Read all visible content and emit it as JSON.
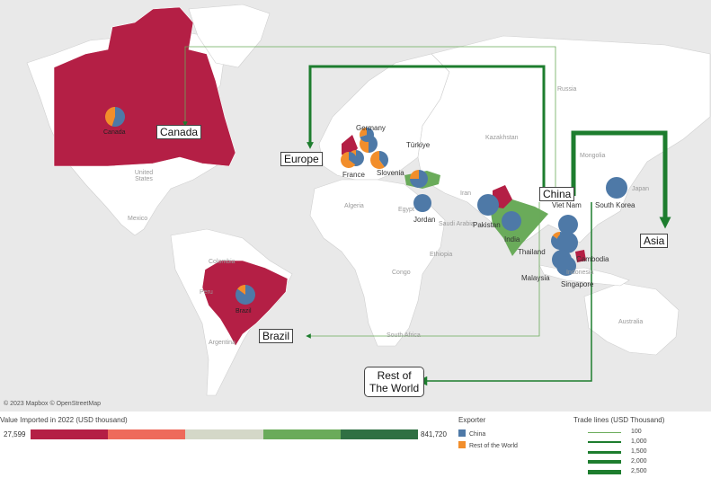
{
  "map": {
    "attribution": "© 2023 Mapbox © OpenStreetMap",
    "geo_labels": [
      "Russia",
      "United States",
      "Mexico",
      "Colombia",
      "Peru",
      "Argentina",
      "Algeria",
      "Egypt",
      "Saudi Arabia",
      "Ethiopia",
      "Congo",
      "South Africa",
      "Iran",
      "Japan",
      "Indonesia",
      "Australia",
      "Kazakhstan",
      "Mongolia",
      "Türkiye"
    ],
    "country_labels": {
      "canada": "Canada",
      "brazil": "Brazil",
      "germany": "Germany",
      "france": "France",
      "slovenia": "Slovenia",
      "jordan": "Jordan",
      "pakistan": "Pakistan",
      "india": "India",
      "thailand": "Thailand",
      "vietnam": "Viet Nam",
      "cambodia": "Cambodia",
      "malaysia": "Malaysia",
      "singapore": "Singapore",
      "south_korea": "South Korea"
    },
    "regions": {
      "canada": "Canada",
      "europe": "Europe",
      "china": "China",
      "asia": "Asia",
      "brazil": "Brazil",
      "rest_of_world": "Rest of\nThe World"
    },
    "pies": [
      {
        "country": "Canada",
        "china_share": 0.55
      },
      {
        "country": "Brazil",
        "china_share": 0.85
      },
      {
        "country": "Germany",
        "china_share": 0.5
      },
      {
        "country": "Germany (2)",
        "china_share": 0.6
      },
      {
        "country": "France",
        "china_share": 0.35
      },
      {
        "country": "France (2)",
        "china_share": 0.7
      },
      {
        "country": "Slovenia",
        "china_share": 0.4
      },
      {
        "country": "Türkiye",
        "china_share": 0.75
      },
      {
        "country": "Jordan",
        "china_share": 1.0
      },
      {
        "country": "Pakistan",
        "china_share": 1.0
      },
      {
        "country": "India",
        "china_share": 1.0
      },
      {
        "country": "Viet Nam",
        "china_share": 1.0
      },
      {
        "country": "Thailand",
        "china_share": 0.85
      },
      {
        "country": "Cambodia",
        "china_share": 1.0
      },
      {
        "country": "Malaysia",
        "china_share": 1.0
      },
      {
        "country": "Singapore",
        "china_share": 1.0
      },
      {
        "country": "South Korea",
        "china_share": 1.0
      }
    ],
    "trade_lines": [
      {
        "from": "China",
        "to": "Asia",
        "value": 2500
      },
      {
        "from": "China",
        "to": "Europe",
        "value": 1500
      },
      {
        "from": "China",
        "to": "Canada",
        "value": 100
      },
      {
        "from": "China",
        "to": "Brazil",
        "value": 100
      },
      {
        "from": "China",
        "to": "Rest of The World",
        "value": 500
      }
    ],
    "colors": {
      "ocean": "#e9e9e9",
      "land": "#ffffff",
      "low": "#b41f45",
      "china": "#4e79a7",
      "rest": "#f28e2b",
      "trade": "#1d7d2e",
      "green": "#6aab5a"
    }
  },
  "legend": {
    "value_title": "Value Imported in 2022 (USD thousand)",
    "value_min": "27,599",
    "value_max": "841,720",
    "value_colors": [
      "#b41f45",
      "#ee6a5b",
      "#d4d8c8",
      "#6aab5a",
      "#2f7043"
    ],
    "exporter_title": "Exporter",
    "exporter_items": [
      {
        "label": "China",
        "color": "#4e79a7"
      },
      {
        "label": "Rest of the World",
        "color": "#f28e2b"
      }
    ],
    "trade_title": "Trade lines (USD Thousand)",
    "trade_items": [
      {
        "label": "100",
        "value": 100
      },
      {
        "label": "1,000",
        "value": 1000
      },
      {
        "label": "1,500",
        "value": 1500
      },
      {
        "label": "2,000",
        "value": 2000
      },
      {
        "label": "2,500",
        "value": 2500
      }
    ]
  }
}
